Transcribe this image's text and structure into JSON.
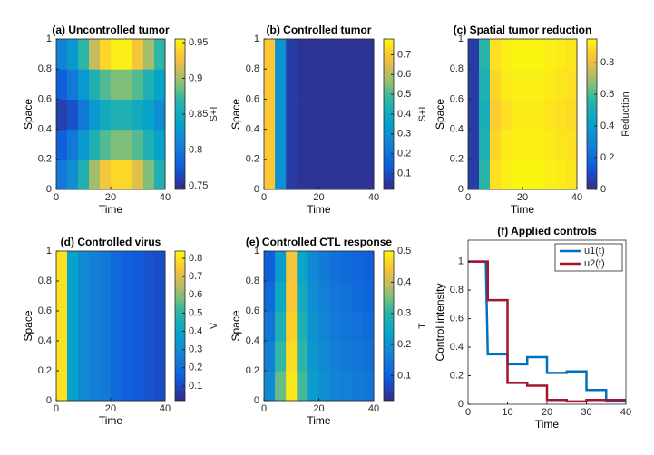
{
  "chart_data": [
    {
      "type": "heatmap",
      "title": "(a) Uncontrolled tumor",
      "xlabel": "Time",
      "ylabel": "Space",
      "colorbar_label": "S+I",
      "colormap": "parula",
      "x": [
        2,
        6,
        10,
        14,
        18,
        22,
        26,
        30,
        34,
        38
      ],
      "y": [
        0.1,
        0.3,
        0.5,
        0.7,
        0.9
      ],
      "z": [
        [
          0.8,
          0.82,
          0.86,
          0.9,
          0.93,
          0.94,
          0.94,
          0.92,
          0.89,
          0.86
        ],
        [
          0.78,
          0.8,
          0.83,
          0.86,
          0.88,
          0.89,
          0.89,
          0.88,
          0.86,
          0.84
        ],
        [
          0.76,
          0.77,
          0.8,
          0.83,
          0.85,
          0.86,
          0.86,
          0.85,
          0.84,
          0.82
        ],
        [
          0.78,
          0.8,
          0.83,
          0.86,
          0.88,
          0.89,
          0.89,
          0.88,
          0.86,
          0.84
        ],
        [
          0.81,
          0.83,
          0.87,
          0.91,
          0.94,
          0.95,
          0.95,
          0.93,
          0.9,
          0.87
        ]
      ],
      "xlim": [
        0,
        40
      ],
      "ylim": [
        0,
        1
      ],
      "xticks": [
        0,
        20,
        40
      ],
      "yticks": [
        0,
        0.2,
        0.4,
        0.6,
        0.8,
        1
      ],
      "clim": [
        0.745,
        0.955
      ],
      "cticks": [
        0.75,
        0.8,
        0.85,
        0.9,
        0.95
      ]
    },
    {
      "type": "heatmap",
      "title": "(b) Controlled tumor",
      "xlabel": "Time",
      "ylabel": "Space",
      "colorbar_label": "S+I",
      "colormap": "parula",
      "x": [
        2,
        6,
        10,
        14,
        18,
        22,
        26,
        30,
        34,
        38
      ],
      "y": [
        0.1,
        0.3,
        0.5,
        0.7,
        0.9
      ],
      "z": [
        [
          0.7,
          0.3,
          0.06,
          0.04,
          0.04,
          0.04,
          0.04,
          0.04,
          0.04,
          0.04
        ],
        [
          0.7,
          0.3,
          0.06,
          0.04,
          0.04,
          0.04,
          0.04,
          0.04,
          0.04,
          0.04
        ],
        [
          0.7,
          0.3,
          0.06,
          0.04,
          0.04,
          0.04,
          0.04,
          0.04,
          0.04,
          0.04
        ],
        [
          0.7,
          0.3,
          0.06,
          0.04,
          0.04,
          0.04,
          0.04,
          0.04,
          0.04,
          0.04
        ],
        [
          0.7,
          0.3,
          0.06,
          0.04,
          0.04,
          0.04,
          0.04,
          0.04,
          0.04,
          0.04
        ]
      ],
      "xlim": [
        0,
        40
      ],
      "ylim": [
        0,
        1
      ],
      "xticks": [
        0,
        20,
        40
      ],
      "yticks": [
        0,
        0.2,
        0.4,
        0.6,
        0.8,
        1
      ],
      "clim": [
        0.02,
        0.78
      ],
      "cticks": [
        0.1,
        0.2,
        0.3,
        0.4,
        0.5,
        0.6,
        0.7
      ]
    },
    {
      "type": "heatmap",
      "title": "(c) Spatial tumor reduction",
      "xlabel": "Time",
      "ylabel": "Space",
      "colorbar_label": "Reduction",
      "colormap": "parula",
      "x": [
        2,
        6,
        10,
        14,
        18,
        22,
        26,
        30,
        34,
        38
      ],
      "y": [
        0.1,
        0.3,
        0.5,
        0.7,
        0.9
      ],
      "z": [
        [
          0.05,
          0.55,
          0.9,
          0.93,
          0.94,
          0.94,
          0.94,
          0.93,
          0.92,
          0.91
        ],
        [
          0.05,
          0.52,
          0.88,
          0.92,
          0.93,
          0.93,
          0.93,
          0.92,
          0.91,
          0.9
        ],
        [
          0.05,
          0.5,
          0.86,
          0.9,
          0.92,
          0.92,
          0.92,
          0.91,
          0.9,
          0.89
        ],
        [
          0.05,
          0.52,
          0.88,
          0.92,
          0.93,
          0.93,
          0.93,
          0.92,
          0.91,
          0.9
        ],
        [
          0.05,
          0.55,
          0.9,
          0.93,
          0.94,
          0.94,
          0.94,
          0.93,
          0.92,
          0.91
        ]
      ],
      "xlim": [
        0,
        40
      ],
      "ylim": [
        0,
        1
      ],
      "xticks": [
        0,
        20,
        40
      ],
      "yticks": [
        0,
        0.2,
        0.4,
        0.6,
        0.8,
        1
      ],
      "clim": [
        0,
        0.95
      ],
      "cticks": [
        0,
        0.2,
        0.4,
        0.6,
        0.8
      ]
    },
    {
      "type": "heatmap",
      "title": "(d) Controlled virus",
      "xlabel": "Time",
      "ylabel": "Space",
      "colorbar_label": "V",
      "colormap": "parula",
      "x": [
        2,
        6,
        10,
        14,
        18,
        22,
        26,
        30,
        34,
        38
      ],
      "y": [
        0.1,
        0.3,
        0.5,
        0.7,
        0.9
      ],
      "z": [
        [
          0.8,
          0.38,
          0.3,
          0.26,
          0.24,
          0.19,
          0.16,
          0.14,
          0.12,
          0.11
        ],
        [
          0.8,
          0.38,
          0.3,
          0.26,
          0.24,
          0.19,
          0.16,
          0.14,
          0.12,
          0.11
        ],
        [
          0.8,
          0.38,
          0.3,
          0.26,
          0.24,
          0.19,
          0.16,
          0.14,
          0.12,
          0.11
        ],
        [
          0.8,
          0.38,
          0.3,
          0.26,
          0.24,
          0.19,
          0.16,
          0.14,
          0.12,
          0.11
        ],
        [
          0.8,
          0.38,
          0.3,
          0.26,
          0.24,
          0.19,
          0.16,
          0.14,
          0.12,
          0.11
        ]
      ],
      "xlim": [
        0,
        40
      ],
      "ylim": [
        0,
        1
      ],
      "xticks": [
        0,
        20,
        40
      ],
      "yticks": [
        0,
        0.2,
        0.4,
        0.6,
        0.8,
        1
      ],
      "clim": [
        0.02,
        0.84
      ],
      "cticks": [
        0.1,
        0.2,
        0.3,
        0.4,
        0.5,
        0.6,
        0.7,
        0.8
      ]
    },
    {
      "type": "heatmap",
      "title": "(e) Controlled CTL response",
      "xlabel": "Time",
      "ylabel": "Space",
      "colorbar_label": "T",
      "colormap": "parula",
      "x": [
        2,
        6,
        10,
        14,
        18,
        22,
        26,
        30,
        34,
        38
      ],
      "y": [
        0.1,
        0.3,
        0.5,
        0.7,
        0.9
      ],
      "z": [
        [
          0.18,
          0.34,
          0.48,
          0.32,
          0.22,
          0.19,
          0.17,
          0.16,
          0.15,
          0.14
        ],
        [
          0.16,
          0.31,
          0.47,
          0.3,
          0.21,
          0.18,
          0.16,
          0.15,
          0.14,
          0.13
        ],
        [
          0.14,
          0.28,
          0.46,
          0.28,
          0.2,
          0.17,
          0.15,
          0.14,
          0.13,
          0.12
        ],
        [
          0.12,
          0.25,
          0.45,
          0.26,
          0.19,
          0.16,
          0.14,
          0.13,
          0.12,
          0.11
        ],
        [
          0.1,
          0.22,
          0.44,
          0.24,
          0.18,
          0.15,
          0.13,
          0.12,
          0.11,
          0.1
        ]
      ],
      "xlim": [
        0,
        40
      ],
      "ylim": [
        0,
        1
      ],
      "xticks": [
        0,
        20,
        40
      ],
      "yticks": [
        0,
        0.2,
        0.4,
        0.6,
        0.8,
        1
      ],
      "clim": [
        0.02,
        0.5
      ],
      "cticks": [
        0.1,
        0.2,
        0.3,
        0.4,
        0.5
      ]
    },
    {
      "type": "line",
      "title": "(f) Applied controls",
      "xlabel": "Time",
      "ylabel": "Control intensity",
      "legend": "upper right",
      "series": [
        {
          "name": "u1(t)",
          "color": "#0072bd",
          "x": [
            0,
            4.5,
            5,
            10,
            10,
            15,
            15,
            20,
            20,
            25,
            25,
            30,
            30,
            35,
            35,
            40
          ],
          "values": [
            1,
            1,
            0.35,
            0.35,
            0.28,
            0.28,
            0.33,
            0.33,
            0.22,
            0.22,
            0.23,
            0.23,
            0.1,
            0.1,
            0.02,
            0.02
          ]
        },
        {
          "name": "u2(t)",
          "color": "#a2142f",
          "x": [
            0,
            5,
            5,
            10,
            10,
            15,
            15,
            20,
            20,
            25,
            25,
            30,
            30,
            35,
            35,
            40
          ],
          "values": [
            1,
            1,
            0.73,
            0.73,
            0.15,
            0.15,
            0.13,
            0.13,
            0.03,
            0.03,
            0.02,
            0.02,
            0.03,
            0.03,
            0.03,
            0.03
          ]
        }
      ],
      "xlim": [
        0,
        40
      ],
      "ylim": [
        0,
        1.15
      ],
      "xticks": [
        0,
        10,
        20,
        30,
        40
      ],
      "yticks": [
        0,
        0.2,
        0.4,
        0.6,
        0.8,
        1
      ]
    }
  ]
}
